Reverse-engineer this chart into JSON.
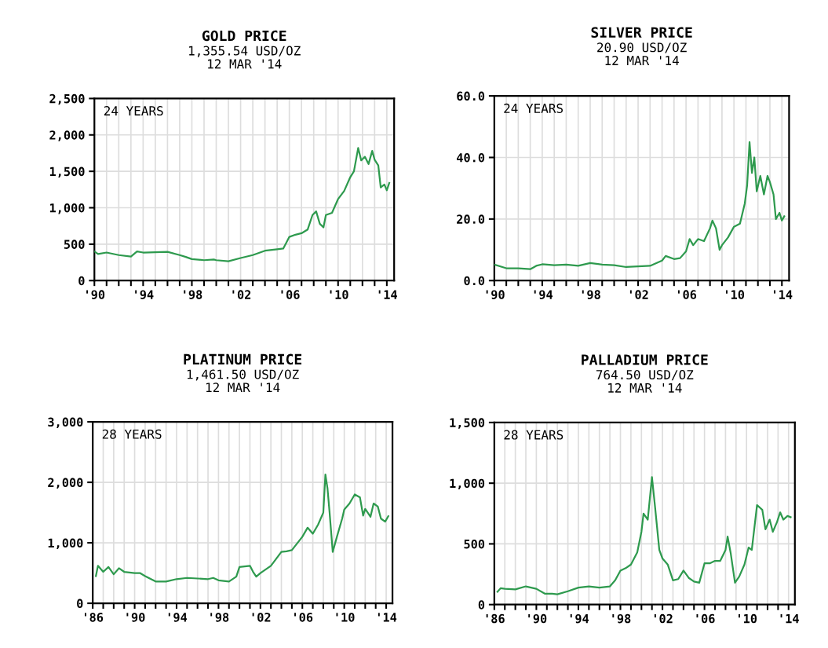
{
  "chart_data": [
    {
      "type": "line",
      "title": "GOLD PRICE",
      "subtitle": "1,355.54 USD/OZ\n12 MAR '14",
      "annotations": [
        "24 YEARS"
      ],
      "color": "#2e9a4e",
      "grid": true,
      "x": [
        1990.0,
        1990.3,
        1991.0,
        1992.0,
        1993.0,
        1993.5,
        1994.0,
        1995.0,
        1996.0,
        1997.0,
        1997.5,
        1998.0,
        1999.0,
        1999.8,
        2000.0,
        2001.0,
        2002.0,
        2003.0,
        2004.0,
        2005.0,
        2005.5,
        2006.0,
        2006.5,
        2007.0,
        2007.5,
        2007.9,
        2008.2,
        2008.5,
        2008.8,
        2009.0,
        2009.5,
        2010.0,
        2010.5,
        2011.0,
        2011.3,
        2011.65,
        2011.9,
        2012.2,
        2012.5,
        2012.8,
        2013.0,
        2013.3,
        2013.5,
        2013.8,
        2014.0,
        2014.2
      ],
      "values": [
        400,
        365,
        385,
        350,
        330,
        400,
        385,
        390,
        395,
        350,
        325,
        295,
        280,
        290,
        280,
        265,
        310,
        350,
        410,
        430,
        440,
        600,
        630,
        650,
        700,
        900,
        950,
        780,
        730,
        900,
        930,
        1120,
        1230,
        1420,
        1500,
        1820,
        1650,
        1700,
        1600,
        1780,
        1660,
        1580,
        1280,
        1320,
        1240,
        1340
      ],
      "xlim": [
        1990,
        2014.6
      ],
      "ylim": [
        0,
        2500
      ],
      "xticks": [
        {
          "value": 1990,
          "label": "'90"
        },
        {
          "value": 1991,
          "label": null
        },
        {
          "value": 1992,
          "label": null
        },
        {
          "value": 1993,
          "label": null
        },
        {
          "value": 1994,
          "label": "'94"
        },
        {
          "value": 1995,
          "label": null
        },
        {
          "value": 1996,
          "label": null
        },
        {
          "value": 1997,
          "label": null
        },
        {
          "value": 1998,
          "label": "'98"
        },
        {
          "value": 1999,
          "label": null
        },
        {
          "value": 2000,
          "label": null
        },
        {
          "value": 2001,
          "label": null
        },
        {
          "value": 2002,
          "label": "'02"
        },
        {
          "value": 2003,
          "label": null
        },
        {
          "value": 2004,
          "label": null
        },
        {
          "value": 2005,
          "label": null
        },
        {
          "value": 2006,
          "label": "'06"
        },
        {
          "value": 2007,
          "label": null
        },
        {
          "value": 2008,
          "label": null
        },
        {
          "value": 2009,
          "label": null
        },
        {
          "value": 2010,
          "label": "'10"
        },
        {
          "value": 2011,
          "label": null
        },
        {
          "value": 2012,
          "label": null
        },
        {
          "value": 2013,
          "label": null
        },
        {
          "value": 2014,
          "label": "'14"
        }
      ],
      "yticks": [
        0,
        500,
        {
          "value": 1000,
          "label": "1,000"
        },
        {
          "value": 1500,
          "label": "1,500"
        },
        {
          "value": 2000,
          "label": "2,000"
        },
        {
          "value": 2500,
          "label": "2,500"
        }
      ]
    },
    {
      "type": "line",
      "title": "SILVER PRICE",
      "subtitle": "20.90 USD/OZ\n12 MAR '14",
      "annotations": [
        "24 YEARS"
      ],
      "color": "#2e9a4e",
      "grid": true,
      "x": [
        1990.0,
        1991.0,
        1992.0,
        1993.0,
        1993.5,
        1994.0,
        1995.0,
        1996.0,
        1997.0,
        1998.0,
        1999.0,
        2000.0,
        2001.0,
        2002.0,
        2003.0,
        2004.0,
        2004.3,
        2005.0,
        2005.5,
        2006.0,
        2006.3,
        2006.6,
        2007.0,
        2007.5,
        2008.0,
        2008.2,
        2008.5,
        2008.8,
        2009.0,
        2009.5,
        2010.0,
        2010.5,
        2010.9,
        2011.1,
        2011.3,
        2011.5,
        2011.7,
        2011.9,
        2012.2,
        2012.5,
        2012.8,
        2013.0,
        2013.3,
        2013.5,
        2013.8,
        2014.0,
        2014.2
      ],
      "values": [
        5.2,
        4.0,
        4.0,
        3.7,
        4.8,
        5.3,
        5.0,
        5.2,
        4.8,
        5.7,
        5.2,
        5.0,
        4.4,
        4.6,
        4.8,
        6.5,
        8.0,
        7.0,
        7.3,
        9.5,
        13.5,
        11.5,
        13.5,
        12.8,
        17.0,
        19.5,
        17.0,
        10.0,
        11.5,
        14.0,
        17.5,
        18.5,
        25.0,
        31.0,
        45.0,
        35.0,
        40.0,
        29.0,
        34.0,
        28.0,
        34.0,
        32.0,
        28.0,
        20.0,
        22.0,
        19.5,
        20.9
      ],
      "xlim": [
        1990,
        2014.6
      ],
      "ylim": [
        0,
        60
      ],
      "xticks": [
        {
          "value": 1990,
          "label": "'90"
        },
        {
          "value": 1991,
          "label": null
        },
        {
          "value": 1992,
          "label": null
        },
        {
          "value": 1993,
          "label": null
        },
        {
          "value": 1994,
          "label": "'94"
        },
        {
          "value": 1995,
          "label": null
        },
        {
          "value": 1996,
          "label": null
        },
        {
          "value": 1997,
          "label": null
        },
        {
          "value": 1998,
          "label": "'98"
        },
        {
          "value": 1999,
          "label": null
        },
        {
          "value": 2000,
          "label": null
        },
        {
          "value": 2001,
          "label": null
        },
        {
          "value": 2002,
          "label": "'02"
        },
        {
          "value": 2003,
          "label": null
        },
        {
          "value": 2004,
          "label": null
        },
        {
          "value": 2005,
          "label": null
        },
        {
          "value": 2006,
          "label": "'06"
        },
        {
          "value": 2007,
          "label": null
        },
        {
          "value": 2008,
          "label": null
        },
        {
          "value": 2009,
          "label": null
        },
        {
          "value": 2010,
          "label": "'10"
        },
        {
          "value": 2011,
          "label": null
        },
        {
          "value": 2012,
          "label": null
        },
        {
          "value": 2013,
          "label": null
        },
        {
          "value": 2014,
          "label": "'14"
        }
      ],
      "yticks": [
        {
          "value": 0,
          "label": "0.0"
        },
        {
          "value": 20,
          "label": "20.0"
        },
        {
          "value": 40,
          "label": "40.0"
        },
        {
          "value": 60,
          "label": "60.0"
        }
      ]
    },
    {
      "type": "line",
      "title": "PLATINUM PRICE",
      "subtitle": "1,461.50 USD/OZ\n12 MAR '14",
      "annotations": [
        "28 YEARS"
      ],
      "color": "#2e9a4e",
      "grid": true,
      "x": [
        1986.3,
        1986.5,
        1987.0,
        1987.5,
        1988.0,
        1988.5,
        1989.0,
        1990.0,
        1990.5,
        1991.0,
        1992.0,
        1993.0,
        1994.0,
        1995.0,
        1996.0,
        1997.0,
        1997.5,
        1998.0,
        1999.0,
        1999.7,
        2000.0,
        2001.0,
        2001.3,
        2001.6,
        2002.0,
        2003.0,
        2004.0,
        2004.5,
        2005.0,
        2006.0,
        2006.5,
        2007.0,
        2007.5,
        2008.0,
        2008.2,
        2008.4,
        2008.6,
        2008.9,
        2009.3,
        2009.8,
        2010.0,
        2010.5,
        2011.0,
        2011.5,
        2011.8,
        2012.0,
        2012.5,
        2012.8,
        2013.2,
        2013.5,
        2013.9,
        2014.2
      ],
      "values": [
        450,
        620,
        520,
        600,
        480,
        580,
        520,
        500,
        500,
        450,
        360,
        360,
        400,
        420,
        410,
        400,
        420,
        380,
        360,
        440,
        600,
        620,
        520,
        440,
        500,
        620,
        850,
        860,
        880,
        1100,
        1250,
        1150,
        1300,
        1500,
        2130,
        1900,
        1500,
        850,
        1100,
        1400,
        1550,
        1650,
        1800,
        1750,
        1450,
        1560,
        1430,
        1650,
        1600,
        1400,
        1350,
        1440
      ],
      "xlim": [
        1986,
        2014.6
      ],
      "ylim": [
        0,
        3000
      ],
      "xticks": [
        {
          "value": 1986,
          "label": "'86"
        },
        {
          "value": 1987,
          "label": null
        },
        {
          "value": 1988,
          "label": null
        },
        {
          "value": 1989,
          "label": null
        },
        {
          "value": 1990,
          "label": "'90"
        },
        {
          "value": 1991,
          "label": null
        },
        {
          "value": 1992,
          "label": null
        },
        {
          "value": 1993,
          "label": null
        },
        {
          "value": 1994,
          "label": "'94"
        },
        {
          "value": 1995,
          "label": null
        },
        {
          "value": 1996,
          "label": null
        },
        {
          "value": 1997,
          "label": null
        },
        {
          "value": 1998,
          "label": "'98"
        },
        {
          "value": 1999,
          "label": null
        },
        {
          "value": 2000,
          "label": null
        },
        {
          "value": 2001,
          "label": null
        },
        {
          "value": 2002,
          "label": "'02"
        },
        {
          "value": 2003,
          "label": null
        },
        {
          "value": 2004,
          "label": null
        },
        {
          "value": 2005,
          "label": null
        },
        {
          "value": 2006,
          "label": "'06"
        },
        {
          "value": 2007,
          "label": null
        },
        {
          "value": 2008,
          "label": null
        },
        {
          "value": 2009,
          "label": null
        },
        {
          "value": 2010,
          "label": "'10"
        },
        {
          "value": 2011,
          "label": null
        },
        {
          "value": 2012,
          "label": null
        },
        {
          "value": 2013,
          "label": null
        },
        {
          "value": 2014,
          "label": "'14"
        }
      ],
      "yticks": [
        0,
        {
          "value": 1000,
          "label": "1,000"
        },
        {
          "value": 2000,
          "label": "2,000"
        },
        {
          "value": 3000,
          "label": "3,000"
        }
      ]
    },
    {
      "type": "line",
      "title": "PALLADIUM PRICE",
      "subtitle": "764.50 USD/OZ\n12 MAR '14",
      "annotations": [
        "28 YEARS"
      ],
      "color": "#2e9a4e",
      "grid": true,
      "x": [
        1986.3,
        1986.6,
        1987.0,
        1988.0,
        1989.0,
        1990.0,
        1990.8,
        1991.5,
        1992.0,
        1993.0,
        1994.0,
        1995.0,
        1996.0,
        1997.0,
        1997.5,
        1998.0,
        1998.5,
        1999.0,
        1999.6,
        2000.0,
        2000.2,
        2000.6,
        2001.0,
        2001.3,
        2001.7,
        2002.0,
        2002.5,
        2003.0,
        2003.5,
        2004.0,
        2004.5,
        2005.0,
        2005.5,
        2006.0,
        2006.5,
        2007.0,
        2007.5,
        2008.0,
        2008.2,
        2008.5,
        2008.9,
        2009.3,
        2009.8,
        2010.2,
        2010.5,
        2011.0,
        2011.5,
        2011.8,
        2012.2,
        2012.5,
        2012.9,
        2013.2,
        2013.5,
        2013.9,
        2014.2
      ],
      "values": [
        105,
        135,
        130,
        125,
        150,
        130,
        90,
        90,
        85,
        110,
        140,
        150,
        140,
        150,
        200,
        280,
        300,
        330,
        430,
        600,
        750,
        700,
        1050,
        800,
        450,
        380,
        330,
        200,
        210,
        280,
        220,
        190,
        180,
        340,
        340,
        360,
        360,
        450,
        560,
        420,
        180,
        230,
        330,
        470,
        450,
        820,
        780,
        620,
        700,
        600,
        680,
        760,
        700,
        730,
        720
      ],
      "xlim": [
        1986,
        2014.6
      ],
      "ylim": [
        0,
        1500
      ],
      "xticks": [
        {
          "value": 1986,
          "label": "'86"
        },
        {
          "value": 1987,
          "label": null
        },
        {
          "value": 1988,
          "label": null
        },
        {
          "value": 1989,
          "label": null
        },
        {
          "value": 1990,
          "label": "'90"
        },
        {
          "value": 1991,
          "label": null
        },
        {
          "value": 1992,
          "label": null
        },
        {
          "value": 1993,
          "label": null
        },
        {
          "value": 1994,
          "label": "'94"
        },
        {
          "value": 1995,
          "label": null
        },
        {
          "value": 1996,
          "label": null
        },
        {
          "value": 1997,
          "label": null
        },
        {
          "value": 1998,
          "label": "'98"
        },
        {
          "value": 1999,
          "label": null
        },
        {
          "value": 2000,
          "label": null
        },
        {
          "value": 2001,
          "label": null
        },
        {
          "value": 2002,
          "label": "'02"
        },
        {
          "value": 2003,
          "label": null
        },
        {
          "value": 2004,
          "label": null
        },
        {
          "value": 2005,
          "label": null
        },
        {
          "value": 2006,
          "label": "'06"
        },
        {
          "value": 2007,
          "label": null
        },
        {
          "value": 2008,
          "label": null
        },
        {
          "value": 2009,
          "label": null
        },
        {
          "value": 2010,
          "label": "'10"
        },
        {
          "value": 2011,
          "label": null
        },
        {
          "value": 2012,
          "label": null
        },
        {
          "value": 2013,
          "label": null
        },
        {
          "value": 2014,
          "label": "'14"
        }
      ],
      "yticks": [
        0,
        500,
        {
          "value": 1000,
          "label": "1,000"
        },
        {
          "value": 1500,
          "label": "1,500"
        }
      ]
    }
  ]
}
